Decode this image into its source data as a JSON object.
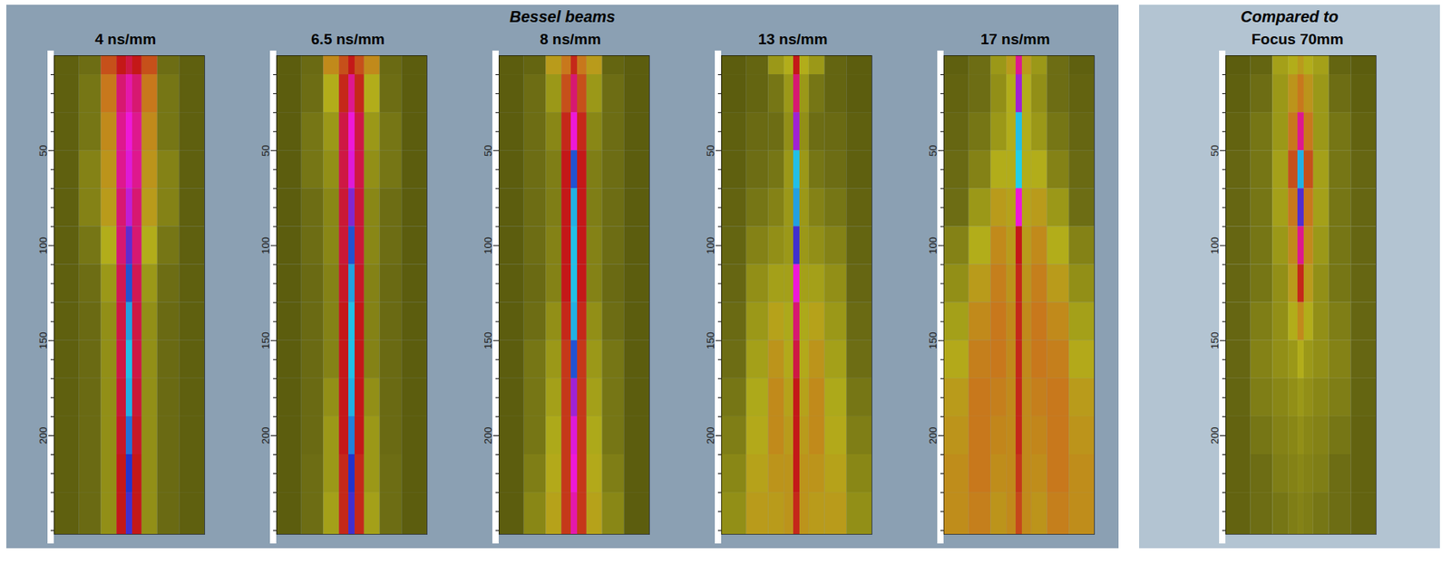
{
  "chart_data": [
    {
      "type": "heatmap",
      "group": "Bessel beams",
      "title": "4 ns/mm",
      "x": [
        -20,
        -12,
        -6,
        -2,
        0,
        2,
        6,
        12,
        20
      ],
      "y": [
        0,
        20,
        40,
        60,
        80,
        100,
        120,
        140,
        160,
        180,
        200,
        220,
        240
      ],
      "xlim": [
        -24,
        24
      ],
      "ylim": [
        0,
        252
      ],
      "yticks": [
        50,
        100,
        150,
        200
      ],
      "minor_yticks": [
        10,
        20,
        30,
        40,
        60,
        70,
        80,
        90,
        110,
        120,
        130,
        140,
        160,
        170,
        180,
        190,
        210,
        220,
        230,
        240,
        250
      ],
      "value_range": [
        0,
        1
      ],
      "tick_labels": "y",
      "cells": [
        [
          0.12,
          0.2,
          0.55,
          0.62,
          0.65,
          0.62,
          0.55,
          0.2,
          0.12
        ],
        [
          0.12,
          0.22,
          0.5,
          0.68,
          0.72,
          0.68,
          0.5,
          0.22,
          0.12
        ],
        [
          0.12,
          0.22,
          0.45,
          0.7,
          0.75,
          0.7,
          0.45,
          0.22,
          0.12
        ],
        [
          0.12,
          0.25,
          0.42,
          0.7,
          0.76,
          0.7,
          0.42,
          0.25,
          0.12
        ],
        [
          0.12,
          0.25,
          0.4,
          0.68,
          0.78,
          0.68,
          0.4,
          0.25,
          0.12
        ],
        [
          0.12,
          0.22,
          0.35,
          0.68,
          0.84,
          0.68,
          0.35,
          0.22,
          0.12
        ],
        [
          0.12,
          0.2,
          0.3,
          0.66,
          0.9,
          0.66,
          0.3,
          0.2,
          0.12
        ],
        [
          0.12,
          0.18,
          0.28,
          0.65,
          0.95,
          0.65,
          0.28,
          0.18,
          0.12
        ],
        [
          0.12,
          0.18,
          0.28,
          0.65,
          0.97,
          0.65,
          0.28,
          0.18,
          0.12
        ],
        [
          0.12,
          0.18,
          0.28,
          0.64,
          0.96,
          0.64,
          0.28,
          0.18,
          0.12
        ],
        [
          0.12,
          0.18,
          0.28,
          0.63,
          0.92,
          0.63,
          0.28,
          0.18,
          0.12
        ],
        [
          0.12,
          0.18,
          0.28,
          0.62,
          0.88,
          0.62,
          0.28,
          0.18,
          0.12
        ],
        [
          0.12,
          0.18,
          0.28,
          0.62,
          0.86,
          0.62,
          0.28,
          0.18,
          0.12
        ]
      ]
    },
    {
      "type": "heatmap",
      "group": "Bessel beams",
      "title": "6.5 ns/mm",
      "x": [
        -20,
        -12,
        -6,
        -2,
        0,
        2,
        6,
        12,
        20
      ],
      "y": [
        0,
        20,
        40,
        60,
        80,
        100,
        120,
        140,
        160,
        180,
        200,
        220,
        240
      ],
      "xlim": [
        -24,
        24
      ],
      "ylim": [
        0,
        252
      ],
      "yticks": [
        50,
        100,
        150,
        200
      ],
      "minor_yticks": [
        10,
        20,
        30,
        40,
        60,
        70,
        80,
        90,
        110,
        120,
        130,
        140,
        160,
        170,
        180,
        190,
        210,
        220,
        230,
        240,
        250
      ],
      "value_range": [
        0,
        1
      ],
      "tick_labels": "y",
      "cells": [
        [
          0.1,
          0.18,
          0.45,
          0.55,
          0.62,
          0.55,
          0.45,
          0.18,
          0.1
        ],
        [
          0.1,
          0.2,
          0.35,
          0.6,
          0.7,
          0.6,
          0.35,
          0.2,
          0.1
        ],
        [
          0.1,
          0.22,
          0.3,
          0.65,
          0.75,
          0.65,
          0.3,
          0.22,
          0.1
        ],
        [
          0.1,
          0.22,
          0.28,
          0.65,
          0.76,
          0.65,
          0.28,
          0.22,
          0.1
        ],
        [
          0.1,
          0.2,
          0.26,
          0.64,
          0.82,
          0.64,
          0.26,
          0.2,
          0.1
        ],
        [
          0.1,
          0.2,
          0.26,
          0.64,
          0.9,
          0.64,
          0.26,
          0.2,
          0.1
        ],
        [
          0.1,
          0.18,
          0.25,
          0.63,
          0.95,
          0.63,
          0.25,
          0.18,
          0.1
        ],
        [
          0.1,
          0.18,
          0.25,
          0.62,
          0.97,
          0.62,
          0.25,
          0.18,
          0.1
        ],
        [
          0.1,
          0.18,
          0.25,
          0.62,
          0.97,
          0.62,
          0.25,
          0.18,
          0.1
        ],
        [
          0.1,
          0.18,
          0.28,
          0.62,
          0.96,
          0.62,
          0.28,
          0.18,
          0.1
        ],
        [
          0.1,
          0.18,
          0.3,
          0.62,
          0.93,
          0.62,
          0.3,
          0.18,
          0.1
        ],
        [
          0.1,
          0.2,
          0.3,
          0.6,
          0.88,
          0.6,
          0.3,
          0.2,
          0.1
        ],
        [
          0.1,
          0.2,
          0.32,
          0.6,
          0.86,
          0.6,
          0.32,
          0.2,
          0.1
        ]
      ]
    },
    {
      "type": "heatmap",
      "group": "Bessel beams",
      "title": "8 ns/mm",
      "x": [
        -20,
        -12,
        -6,
        -2,
        0,
        2,
        6,
        12,
        20
      ],
      "y": [
        0,
        20,
        40,
        60,
        80,
        100,
        120,
        140,
        160,
        180,
        200,
        220,
        240
      ],
      "xlim": [
        -24,
        24
      ],
      "ylim": [
        0,
        252
      ],
      "yticks": [
        50,
        100,
        150,
        200
      ],
      "minor_yticks": [
        10,
        20,
        30,
        40,
        60,
        70,
        80,
        90,
        110,
        120,
        130,
        140,
        160,
        170,
        180,
        190,
        210,
        220,
        230,
        240,
        250
      ],
      "value_range": [
        0,
        1
      ],
      "tick_labels": "y",
      "cells": [
        [
          0.1,
          0.15,
          0.4,
          0.5,
          0.6,
          0.5,
          0.4,
          0.15,
          0.1
        ],
        [
          0.1,
          0.2,
          0.3,
          0.55,
          0.68,
          0.55,
          0.3,
          0.2,
          0.1
        ],
        [
          0.1,
          0.2,
          0.26,
          0.6,
          0.75,
          0.6,
          0.26,
          0.2,
          0.1
        ],
        [
          0.1,
          0.2,
          0.24,
          0.62,
          0.9,
          0.62,
          0.24,
          0.2,
          0.1
        ],
        [
          0.1,
          0.2,
          0.24,
          0.62,
          0.96,
          0.62,
          0.24,
          0.2,
          0.1
        ],
        [
          0.1,
          0.2,
          0.25,
          0.62,
          0.97,
          0.62,
          0.25,
          0.2,
          0.1
        ],
        [
          0.1,
          0.18,
          0.25,
          0.62,
          0.97,
          0.62,
          0.25,
          0.18,
          0.1
        ],
        [
          0.1,
          0.2,
          0.28,
          0.6,
          0.96,
          0.6,
          0.28,
          0.2,
          0.1
        ],
        [
          0.1,
          0.22,
          0.3,
          0.58,
          0.9,
          0.58,
          0.3,
          0.22,
          0.1
        ],
        [
          0.1,
          0.22,
          0.32,
          0.58,
          0.8,
          0.58,
          0.32,
          0.22,
          0.1
        ],
        [
          0.1,
          0.22,
          0.34,
          0.58,
          0.76,
          0.58,
          0.34,
          0.22,
          0.1
        ],
        [
          0.1,
          0.24,
          0.36,
          0.58,
          0.75,
          0.58,
          0.36,
          0.24,
          0.1
        ],
        [
          0.1,
          0.26,
          0.38,
          0.58,
          0.72,
          0.58,
          0.38,
          0.26,
          0.1
        ]
      ]
    },
    {
      "type": "heatmap",
      "group": "Bessel beams",
      "title": "13 ns/mm",
      "x": [
        -20,
        -12,
        -6,
        -2,
        0,
        2,
        6,
        12,
        20
      ],
      "y": [
        0,
        20,
        40,
        60,
        80,
        100,
        120,
        140,
        160,
        180,
        200,
        220,
        240
      ],
      "xlim": [
        -24,
        24
      ],
      "ylim": [
        0,
        252
      ],
      "yticks": [
        50,
        100,
        150,
        200
      ],
      "minor_yticks": [
        10,
        20,
        30,
        40,
        60,
        70,
        80,
        90,
        110,
        120,
        130,
        140,
        160,
        170,
        180,
        190,
        210,
        220,
        230,
        240,
        250
      ],
      "value_range": [
        0,
        1
      ],
      "tick_labels": "y",
      "cells": [
        [
          0.1,
          0.15,
          0.3,
          0.35,
          0.62,
          0.35,
          0.3,
          0.15,
          0.1
        ],
        [
          0.1,
          0.15,
          0.22,
          0.3,
          0.68,
          0.3,
          0.22,
          0.15,
          0.1
        ],
        [
          0.12,
          0.18,
          0.2,
          0.28,
          0.8,
          0.28,
          0.2,
          0.18,
          0.12
        ],
        [
          0.12,
          0.2,
          0.22,
          0.3,
          0.97,
          0.3,
          0.22,
          0.2,
          0.12
        ],
        [
          0.14,
          0.22,
          0.25,
          0.3,
          0.95,
          0.3,
          0.25,
          0.22,
          0.14
        ],
        [
          0.15,
          0.25,
          0.28,
          0.3,
          0.86,
          0.3,
          0.28,
          0.25,
          0.15
        ],
        [
          0.16,
          0.28,
          0.32,
          0.32,
          0.75,
          0.32,
          0.32,
          0.28,
          0.16
        ],
        [
          0.18,
          0.3,
          0.38,
          0.34,
          0.68,
          0.34,
          0.38,
          0.3,
          0.18
        ],
        [
          0.2,
          0.32,
          0.42,
          0.36,
          0.65,
          0.36,
          0.42,
          0.32,
          0.2
        ],
        [
          0.22,
          0.34,
          0.45,
          0.38,
          0.62,
          0.38,
          0.45,
          0.34,
          0.22
        ],
        [
          0.24,
          0.36,
          0.45,
          0.4,
          0.62,
          0.4,
          0.45,
          0.36,
          0.24
        ],
        [
          0.26,
          0.38,
          0.42,
          0.42,
          0.62,
          0.42,
          0.42,
          0.38,
          0.26
        ],
        [
          0.28,
          0.4,
          0.4,
          0.42,
          0.6,
          0.42,
          0.4,
          0.4,
          0.28
        ]
      ]
    },
    {
      "type": "heatmap",
      "group": "Bessel beams",
      "title": "17 ns/mm",
      "x": [
        -20,
        -12,
        -6,
        -2,
        0,
        2,
        6,
        12,
        20
      ],
      "y": [
        0,
        20,
        40,
        60,
        80,
        100,
        120,
        140,
        160,
        180,
        200,
        220,
        240
      ],
      "xlim": [
        -24,
        24
      ],
      "ylim": [
        0,
        252
      ],
      "yticks": [
        50,
        100,
        150,
        200
      ],
      "minor_yticks": [
        10,
        20,
        30,
        40,
        60,
        70,
        80,
        90,
        110,
        120,
        130,
        140,
        160,
        170,
        180,
        190,
        210,
        220,
        230,
        240,
        250
      ],
      "value_range": [
        0,
        1
      ],
      "tick_labels": "y",
      "cells": [
        [
          0.12,
          0.2,
          0.3,
          0.4,
          0.7,
          0.4,
          0.3,
          0.2,
          0.12
        ],
        [
          0.14,
          0.2,
          0.28,
          0.35,
          0.8,
          0.35,
          0.28,
          0.2,
          0.14
        ],
        [
          0.16,
          0.22,
          0.3,
          0.35,
          0.97,
          0.35,
          0.3,
          0.22,
          0.16
        ],
        [
          0.18,
          0.25,
          0.35,
          0.35,
          0.98,
          0.35,
          0.35,
          0.25,
          0.18
        ],
        [
          0.2,
          0.3,
          0.4,
          0.38,
          0.75,
          0.38,
          0.4,
          0.3,
          0.2
        ],
        [
          0.25,
          0.35,
          0.45,
          0.4,
          0.62,
          0.4,
          0.45,
          0.35,
          0.25
        ],
        [
          0.28,
          0.4,
          0.48,
          0.42,
          0.6,
          0.42,
          0.48,
          0.4,
          0.28
        ],
        [
          0.32,
          0.45,
          0.5,
          0.45,
          0.6,
          0.45,
          0.5,
          0.45,
          0.32
        ],
        [
          0.36,
          0.48,
          0.5,
          0.45,
          0.6,
          0.45,
          0.5,
          0.48,
          0.36
        ],
        [
          0.4,
          0.5,
          0.48,
          0.45,
          0.6,
          0.45,
          0.48,
          0.5,
          0.4
        ],
        [
          0.42,
          0.5,
          0.46,
          0.45,
          0.6,
          0.45,
          0.46,
          0.5,
          0.42
        ],
        [
          0.44,
          0.5,
          0.44,
          0.45,
          0.58,
          0.45,
          0.44,
          0.5,
          0.44
        ],
        [
          0.44,
          0.48,
          0.42,
          0.45,
          0.56,
          0.45,
          0.42,
          0.48,
          0.44
        ]
      ]
    },
    {
      "type": "heatmap",
      "group": "Compared to",
      "title": "Focus 70mm",
      "x": [
        -20,
        -12,
        -6,
        -2,
        0,
        2,
        6,
        12,
        20
      ],
      "y": [
        0,
        20,
        40,
        60,
        80,
        100,
        120,
        140,
        160,
        180,
        200,
        220,
        240
      ],
      "xlim": [
        -24,
        24
      ],
      "ylim": [
        0,
        252
      ],
      "yticks": [
        50,
        100,
        150,
        200
      ],
      "minor_yticks": [
        10,
        20,
        30,
        40,
        60,
        70,
        80,
        90,
        110,
        120,
        130,
        140,
        160,
        170,
        180,
        190,
        210,
        220,
        230,
        240,
        250
      ],
      "value_range": [
        0,
        1
      ],
      "tick_labels": "y",
      "cells": [
        [
          0.1,
          0.15,
          0.32,
          0.35,
          0.4,
          0.35,
          0.32,
          0.15,
          0.1
        ],
        [
          0.12,
          0.2,
          0.3,
          0.42,
          0.5,
          0.42,
          0.3,
          0.2,
          0.12
        ],
        [
          0.14,
          0.22,
          0.3,
          0.5,
          0.7,
          0.5,
          0.3,
          0.22,
          0.14
        ],
        [
          0.16,
          0.22,
          0.32,
          0.55,
          0.96,
          0.55,
          0.32,
          0.22,
          0.16
        ],
        [
          0.16,
          0.22,
          0.32,
          0.5,
          0.85,
          0.5,
          0.32,
          0.22,
          0.16
        ],
        [
          0.16,
          0.22,
          0.3,
          0.45,
          0.7,
          0.45,
          0.3,
          0.22,
          0.16
        ],
        [
          0.16,
          0.22,
          0.28,
          0.4,
          0.6,
          0.4,
          0.28,
          0.22,
          0.16
        ],
        [
          0.16,
          0.24,
          0.28,
          0.35,
          0.45,
          0.35,
          0.28,
          0.24,
          0.16
        ],
        [
          0.16,
          0.25,
          0.28,
          0.3,
          0.35,
          0.3,
          0.28,
          0.25,
          0.16
        ],
        [
          0.15,
          0.24,
          0.26,
          0.28,
          0.3,
          0.28,
          0.26,
          0.24,
          0.15
        ],
        [
          0.14,
          0.22,
          0.25,
          0.26,
          0.28,
          0.26,
          0.25,
          0.22,
          0.14
        ],
        [
          0.14,
          0.2,
          0.24,
          0.25,
          0.26,
          0.25,
          0.24,
          0.2,
          0.14
        ],
        [
          0.14,
          0.2,
          0.22,
          0.24,
          0.25,
          0.24,
          0.22,
          0.2,
          0.14
        ]
      ]
    }
  ]
}
